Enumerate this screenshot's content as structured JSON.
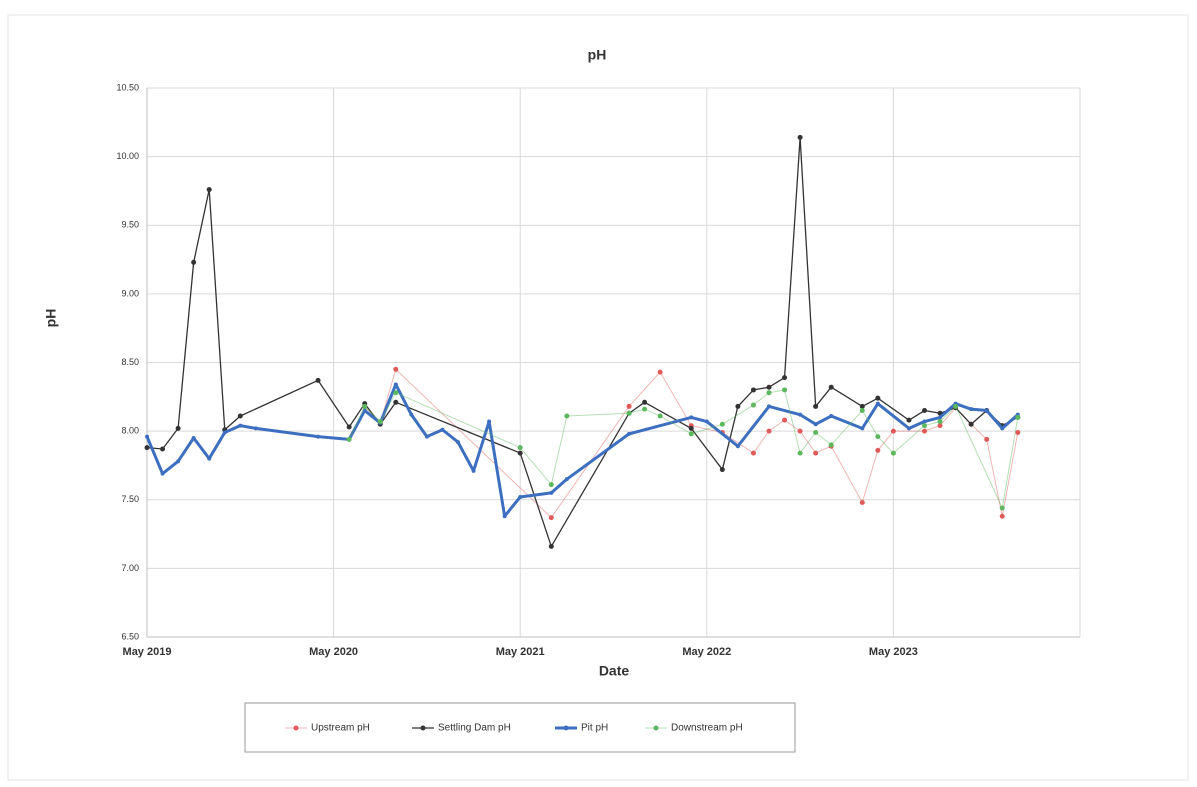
{
  "chart_data": {
    "type": "line",
    "title": "pH",
    "x_label": "Date",
    "y_label": "pH",
    "xlim": [
      "2019-05",
      "2024-05"
    ],
    "xticks": [
      {
        "value": "2019-05",
        "label": "May 2019"
      },
      {
        "value": "2020-05",
        "label": "May 2020"
      },
      {
        "value": "2021-05",
        "label": "May 2021"
      },
      {
        "value": "2022-05",
        "label": "May 2022"
      },
      {
        "value": "2023-05",
        "label": "May 2023"
      },
      {
        "value": "2024-05",
        "label": ""
      }
    ],
    "ylim": [
      6.5,
      10.5
    ],
    "yticks": [
      {
        "value": 6.5,
        "label": "6.50"
      },
      {
        "value": 7,
        "label": "7.00"
      },
      {
        "value": 7.5,
        "label": "7.50"
      },
      {
        "value": 8,
        "label": "8.00"
      },
      {
        "value": 8.5,
        "label": "8.50"
      },
      {
        "value": 9,
        "label": "9.00"
      },
      {
        "value": 9.5,
        "label": "9.50"
      },
      {
        "value": 10,
        "label": "10.00"
      },
      {
        "value": 10.5,
        "label": "10.50"
      }
    ],
    "grid": true,
    "legend": "bottom",
    "series": [
      {
        "name": "Upstream pH",
        "color": "#e05a5a",
        "line_width": 1,
        "x": [
          "2020-07",
          "2020-08",
          "2020-09",
          "2021-07",
          "2021-12",
          "2022-02",
          "2022-04",
          "2022-06",
          "2022-08",
          "2022-09",
          "2022-10",
          "2022-11",
          "2022-12",
          "2023-01",
          "2023-03",
          "2023-04",
          "2023-05",
          "2023-07",
          "2023-08",
          "2023-09",
          "2023-10",
          "2023-11",
          "2023-12",
          "2024-01"
        ],
        "values": [
          8.18,
          8.06,
          8.45,
          7.37,
          8.18,
          8.43,
          8.04,
          7.99,
          7.84,
          8.0,
          8.08,
          8.0,
          7.84,
          7.89,
          7.48,
          7.86,
          8.0,
          8.0,
          8.04,
          8.17,
          8.05,
          7.94,
          7.38,
          7.99
        ]
      },
      {
        "name": "Settling Dam pH",
        "color": "#333333",
        "line_width": 1.3,
        "x": [
          "2019-05",
          "2019-06",
          "2019-07",
          "2019-08",
          "2019-09",
          "2019-10",
          "2019-11",
          "2020-04",
          "2020-06",
          "2020-07",
          "2020-08",
          "2020-09",
          "2021-05",
          "2021-07",
          "2021-12",
          "2022-01",
          "2022-04",
          "2022-06",
          "2022-07",
          "2022-08",
          "2022-09",
          "2022-10",
          "2022-11",
          "2022-12",
          "2023-01",
          "2023-03",
          "2023-04",
          "2023-06",
          "2023-07",
          "2023-08",
          "2023-09",
          "2023-10",
          "2023-11",
          "2023-12",
          "2024-01"
        ],
        "values": [
          7.88,
          7.87,
          8.02,
          9.23,
          9.76,
          8.01,
          8.11,
          8.37,
          8.03,
          8.2,
          8.05,
          8.21,
          7.84,
          7.16,
          8.13,
          8.21,
          8.02,
          7.72,
          8.18,
          8.3,
          8.32,
          8.39,
          10.14,
          8.18,
          8.32,
          8.18,
          8.24,
          8.08,
          8.15,
          8.13,
          8.17,
          8.05,
          8.15,
          8.04,
          8.1
        ]
      },
      {
        "name": "Pit pH",
        "color": "#3d6fc0",
        "line_width": 3,
        "x": [
          "2019-05",
          "2019-06",
          "2019-07",
          "2019-08",
          "2019-09",
          "2019-10",
          "2019-11",
          "2019-12",
          "2020-04",
          "2020-06",
          "2020-07",
          "2020-08",
          "2020-09",
          "2020-10",
          "2020-11",
          "2020-12",
          "2021-01",
          "2021-02",
          "2021-03",
          "2021-04",
          "2021-05",
          "2021-07",
          "2021-08",
          "2021-12",
          "2022-04",
          "2022-05",
          "2022-07",
          "2022-09",
          "2022-11",
          "2022-12",
          "2023-01",
          "2023-03",
          "2023-04",
          "2023-06",
          "2023-07",
          "2023-08",
          "2023-09",
          "2023-10",
          "2023-11",
          "2023-12",
          "2024-01"
        ],
        "values": [
          7.96,
          7.69,
          7.78,
          7.95,
          7.8,
          7.99,
          8.04,
          8.02,
          7.96,
          7.94,
          8.15,
          8.06,
          8.34,
          8.12,
          7.96,
          8.01,
          7.92,
          7.71,
          8.07,
          7.38,
          7.52,
          7.55,
          7.65,
          7.98,
          8.1,
          8.07,
          7.89,
          8.18,
          8.12,
          8.05,
          8.11,
          8.02,
          8.2,
          8.02,
          8.07,
          8.1,
          8.2,
          8.16,
          8.15,
          8.02,
          8.12
        ]
      },
      {
        "name": "Downstream pH",
        "color": "#5cb85c",
        "line_width": 1,
        "x": [
          "2020-06",
          "2020-07",
          "2020-08",
          "2020-09",
          "2021-05",
          "2021-07",
          "2021-08",
          "2021-12",
          "2022-01",
          "2022-02",
          "2022-04",
          "2022-06",
          "2022-08",
          "2022-09",
          "2022-10",
          "2022-11",
          "2022-12",
          "2023-01",
          "2023-03",
          "2023-04",
          "2023-05",
          "2023-07",
          "2023-08",
          "2023-09",
          "2023-12",
          "2024-01"
        ],
        "values": [
          7.94,
          8.18,
          8.07,
          8.28,
          7.88,
          7.61,
          8.11,
          8.13,
          8.16,
          8.11,
          7.98,
          8.05,
          8.19,
          8.28,
          8.3,
          7.84,
          7.99,
          7.9,
          8.15,
          7.96,
          7.84,
          8.04,
          8.07,
          8.18,
          7.44,
          8.1
        ]
      }
    ]
  }
}
